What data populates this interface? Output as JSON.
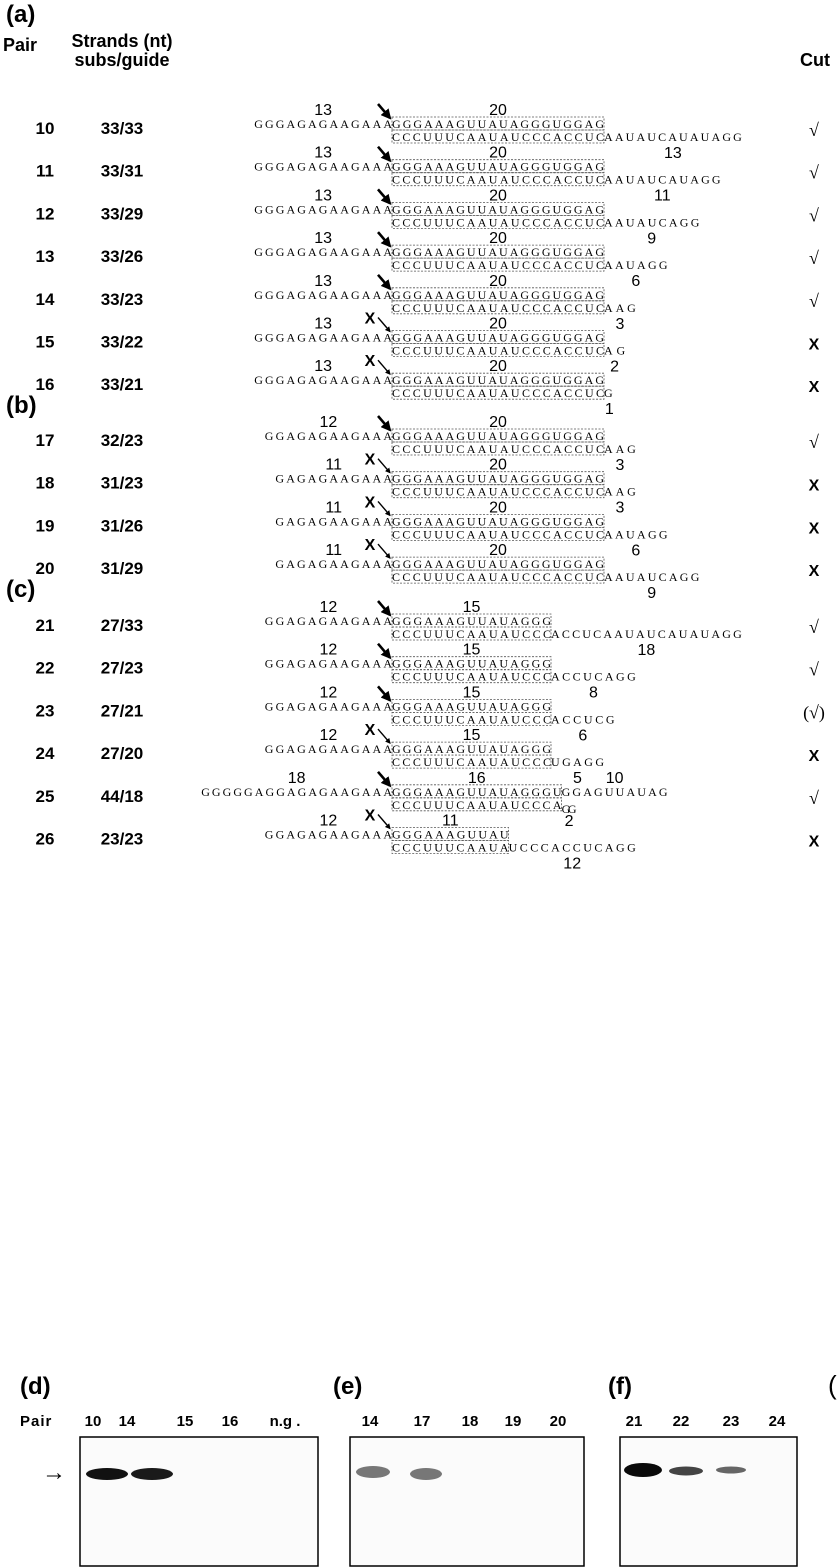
{
  "header": {
    "pair": "Pair",
    "strands": "Strands (nt)",
    "ratio": "subs/guide",
    "cut": "Cut"
  },
  "sections": [
    {
      "label": "(a)",
      "rows": [
        {
          "pair": 10,
          "strands": "33/33",
          "left_len": 13,
          "left": "GGGAGAGAAGAAA",
          "box_len": 20,
          "box_top": "GGGAAAGUUAUAGGGUGGAG",
          "box_bottom": "CCCUUUCAAUAUCCCACCUC",
          "tail": "AAUAUCAUAUAGG",
          "tail_len": 13,
          "cut": "√"
        },
        {
          "pair": 11,
          "strands": "33/31",
          "left_len": 13,
          "left": "GGGAGAGAAGAAA",
          "box_len": 20,
          "box_top": "GGGAAAGUUAUAGGGUGGAG",
          "box_bottom": "CCCUUUCAAUAUCCCACCUC",
          "tail": "AAUAUCAUAGG",
          "tail_len": 11,
          "cut": "√"
        },
        {
          "pair": 12,
          "strands": "33/29",
          "left_len": 13,
          "left": "GGGAGAGAAGAAA",
          "box_len": 20,
          "box_top": "GGGAAAGUUAUAGGGUGGAG",
          "box_bottom": "CCCUUUCAAUAUCCCACCUC",
          "tail": "AAUAUCAGG",
          "tail_len": 9,
          "cut": "√"
        },
        {
          "pair": 13,
          "strands": "33/26",
          "left_len": 13,
          "left": "GGGAGAGAAGAAA",
          "box_len": 20,
          "box_top": "GGGAAAGUUAUAGGGUGGAG",
          "box_bottom": "CCCUUUCAAUAUCCCACCUC",
          "tail": "AAUAGG",
          "tail_len": 6,
          "cut": "√"
        },
        {
          "pair": 14,
          "strands": "33/23",
          "left_len": 13,
          "left": "GGGAGAGAAGAAA",
          "box_len": 20,
          "box_top": "GGGAAAGUUAUAGGGUGGAG",
          "box_bottom": "CCCUUUCAAUAUCCCACCUC",
          "tail": "AAG",
          "tail_len": 3,
          "cut": "√"
        },
        {
          "pair": 15,
          "strands": "33/22",
          "block": "X",
          "left_len": 13,
          "left": "GGGAGAGAAGAAA",
          "box_len": 20,
          "box_top": "GGGAAAGUUAUAGGGUGGAG",
          "box_bottom": "CCCUUUCAAUAUCCCACCUC",
          "tail": "AG",
          "tail_len": 2,
          "cut": "X"
        },
        {
          "pair": 16,
          "strands": "33/21",
          "block": "X",
          "left_len": 13,
          "left": "GGGAGAGAAGAAA",
          "box_len": 20,
          "box_top": "GGGAAAGUUAUAGGGUGGAG",
          "box_bottom": "CCCUUUCAAUAUCCCACCUC",
          "tail": "G",
          "tail_len": 1,
          "cut": "X"
        }
      ]
    },
    {
      "label": "(b)",
      "rows": [
        {
          "pair": 17,
          "strands": "32/23",
          "left_len": 12,
          "left": "GGAGAGAAGAAA",
          "box_len": 20,
          "box_top": "GGGAAAGUUAUAGGGUGGAG",
          "box_bottom": "CCCUUUCAAUAUCCCACCUC",
          "tail": "AAG",
          "tail_len": 3,
          "cut": "√"
        },
        {
          "pair": 18,
          "strands": "31/23",
          "block": "X",
          "left_len": 11,
          "left": "GAGAGAAGAAA",
          "box_len": 20,
          "box_top": "GGGAAAGUUAUAGGGUGGAG",
          "box_bottom": "CCCUUUCAAUAUCCCACCUC",
          "tail": "AAG",
          "tail_len": 3,
          "cut": "X"
        },
        {
          "pair": 19,
          "strands": "31/26",
          "block": "X",
          "left_len": 11,
          "left": "GAGAGAAGAAA",
          "box_len": 20,
          "box_top": "GGGAAAGUUAUAGGGUGGAG",
          "box_bottom": "CCCUUUCAAUAUCCCACCUC",
          "tail": "AAUAGG",
          "tail_len": 6,
          "cut": "X"
        },
        {
          "pair": 20,
          "strands": "31/29",
          "block": "X",
          "left_len": 11,
          "left": "GAGAGAAGAAA",
          "box_len": 20,
          "box_top": "GGGAAAGUUAUAGGGUGGAG",
          "box_bottom": "CCCUUUCAAUAUCCCACCUC",
          "tail": "AAUAUCAGG",
          "tail_len": 9,
          "cut": "X"
        }
      ]
    },
    {
      "label": "(c)",
      "rows": [
        {
          "pair": 21,
          "strands": "27/33",
          "left_len": 12,
          "left": "GGAGAGAAGAAA",
          "box_len": 15,
          "box_top": "GGGAAAGUUAUAGGG",
          "box_bottom": "CCCUUUCAAUAUCCC",
          "tail": "ACCUCAAUAUCAUAUAGG",
          "tail_len": 18,
          "cut": "√"
        },
        {
          "pair": 22,
          "strands": "27/23",
          "left_len": 12,
          "left": "GGAGAGAAGAAA",
          "box_len": 15,
          "box_top": "GGGAAAGUUAUAGGG",
          "box_bottom": "CCCUUUCAAUAUCCC",
          "tail": "ACCUCAGG",
          "tail_len": 8,
          "cut": "√"
        },
        {
          "pair": 23,
          "strands": "27/21",
          "left_len": 12,
          "left": "GGAGAGAAGAAA",
          "box_len": 15,
          "box_top": "GGGAAAGUUAUAGGG",
          "box_bottom": "CCCUUUCAAUAUCCC",
          "tail": "ACCUCG",
          "tail_len": 6,
          "cut": "(√)"
        },
        {
          "pair": 24,
          "strands": "27/20",
          "block": "X",
          "left_len": 12,
          "left": "GGAGAGAAGAAA",
          "box_len": 15,
          "box_top": "GGGAAAGUUAUAGGG",
          "box_bottom": "CCCUUUCAAUAUCCC",
          "tail": "UGAGG",
          "tail_len": 5,
          "cut": "X"
        },
        {
          "pair": 25,
          "strands": "44/18",
          "left_len": 18,
          "left": "GGGGGAGGAGAGAAGAAA",
          "box_len": 16,
          "box_top": "GGGAAAGUUAUAGGGU",
          "top_tail": "GGAGUUAUAG",
          "top_tail_len": 10,
          "box_bottom": "CCCUUUCAAUAUCCCA",
          "tail": "GG",
          "tail_len": 2,
          "cut": "√"
        },
        {
          "pair": 26,
          "strands": "23/23",
          "block": "X",
          "left_len": 12,
          "left": "GGAGAGAAGAAA",
          "box_len": 11,
          "box_top": "GGGAAAGUUAU",
          "box_bottom": "CCCUUUCAAUA",
          "tail": "UCCCACCUCAGG",
          "tail_len": 12,
          "cut": "X"
        }
      ]
    }
  ],
  "gels": [
    {
      "label": "(d)",
      "lane_title": "Pair",
      "lanes": [
        "10",
        "14",
        "15",
        "16",
        "n.g ."
      ]
    },
    {
      "label": "(e)",
      "lanes": [
        "14",
        "17",
        "18",
        "19",
        "20"
      ]
    },
    {
      "label": "(f)",
      "lanes": [
        "21",
        "22",
        "23",
        "24"
      ]
    }
  ],
  "edge_label": "("
}
